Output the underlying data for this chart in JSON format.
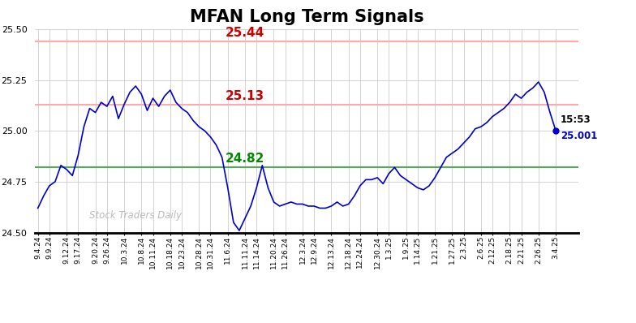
{
  "title": "MFAN Long Term Signals",
  "watermark": "Stock Traders Daily",
  "hline_red1": 25.44,
  "hline_red2": 25.13,
  "hline_green": 24.82,
  "last_time": "15:53",
  "last_price": 25.001,
  "x_labels": [
    "9.4.24",
    "9.9.24",
    "9.12.24",
    "9.17.24",
    "9.20.24",
    "9.26.24",
    "10.3.24",
    "10.8.24",
    "10.11.24",
    "10.18.24",
    "10.23.24",
    "10.28.24",
    "10.31.24",
    "11.6.24",
    "11.11.24",
    "11.14.24",
    "11.20.24",
    "11.26.24",
    "12.3.24",
    "12.9.24",
    "12.13.24",
    "12.18.24",
    "12.24.24",
    "12.30.24",
    "1.3.25",
    "1.9.25",
    "1.14.25",
    "1.21.25",
    "1.27.25",
    "2.3.25",
    "2.6.25",
    "2.12.25",
    "2.18.25",
    "2.21.25",
    "2.26.25",
    "3.4.25"
  ],
  "prices": [
    24.62,
    24.68,
    24.73,
    24.75,
    24.83,
    24.81,
    24.78,
    24.88,
    25.02,
    25.11,
    25.09,
    25.14,
    25.12,
    25.17,
    25.06,
    25.13,
    25.19,
    25.22,
    25.18,
    25.1,
    25.16,
    25.12,
    25.17,
    25.2,
    25.14,
    25.11,
    25.09,
    25.05,
    25.02,
    25.0,
    24.97,
    24.93,
    24.87,
    24.72,
    24.55,
    24.51,
    24.57,
    24.63,
    24.72,
    24.83,
    24.72,
    24.65,
    24.63,
    24.64,
    24.65,
    24.64,
    24.64,
    24.63,
    24.63,
    24.62,
    24.62,
    24.63,
    24.65,
    24.63,
    24.64,
    24.68,
    24.73,
    24.76,
    24.76,
    24.77,
    24.74,
    24.79,
    24.82,
    24.78,
    24.76,
    24.74,
    24.72,
    24.71,
    24.73,
    24.77,
    24.82,
    24.87,
    24.89,
    24.91,
    24.94,
    24.97,
    25.01,
    25.02,
    25.04,
    25.07,
    25.09,
    25.11,
    25.14,
    25.18,
    25.16,
    25.19,
    25.21,
    25.24,
    25.19,
    25.09,
    25.001
  ],
  "ylim": [
    24.5,
    25.5
  ],
  "yticks": [
    24.5,
    24.75,
    25.0,
    25.25,
    25.5
  ],
  "background_color": "#ffffff",
  "line_color": "#0000cc",
  "red_line_color": "#ffaaaa",
  "green_line_color": "#55aa55",
  "red_label_color": "#cc0000",
  "green_label_color": "#008800",
  "title_fontsize": 15,
  "annotation_fontsize": 11,
  "grid_color": "#cccccc",
  "watermark_color": "#bbbbbb"
}
